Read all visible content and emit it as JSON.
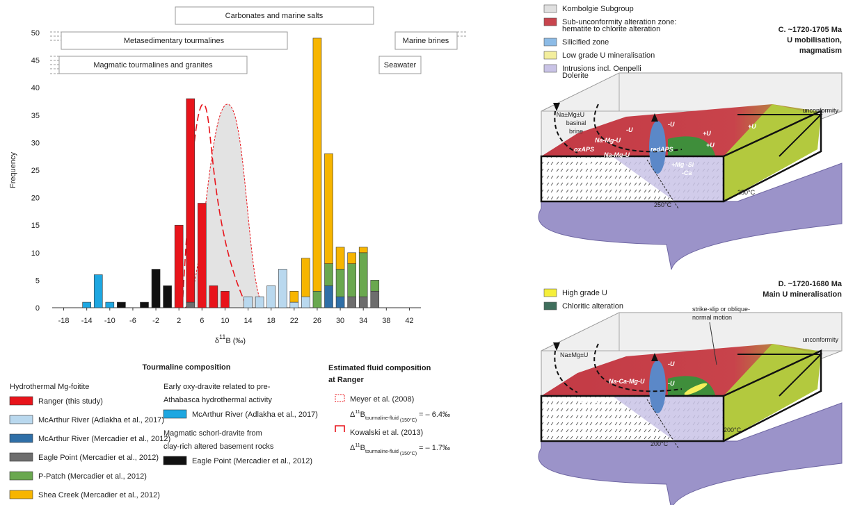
{
  "chart_data": {
    "type": "bar",
    "stacked": true,
    "ranges": [
      "Carbonates and marine salts",
      "Metasedimentary tourmalines",
      "Marine brines",
      "Magmatic tourmalines and granites",
      "Seawater"
    ],
    "y_label": "Frequency",
    "x_label": {
      "symbol": "δ",
      "sup": "11",
      "rest": "B (‰)"
    },
    "x": [
      -14,
      -12,
      -10,
      -8,
      -6,
      -4,
      -2,
      0,
      2,
      4,
      6,
      8,
      10,
      12,
      14,
      16,
      18,
      20,
      22,
      24,
      26,
      28,
      30,
      32,
      34,
      36
    ],
    "series": [
      {
        "name": "Ranger (this study)",
        "color": "#e8141b",
        "values": [
          0,
          0,
          0,
          0,
          0,
          0,
          0,
          0,
          15,
          37,
          19,
          4,
          3,
          0,
          0,
          0,
          0,
          0,
          0,
          0,
          0,
          0,
          0,
          0,
          0,
          0
        ]
      },
      {
        "name": "McArthur River (Adlakha et al., 2017)",
        "color": "#b9d8ee",
        "values": [
          0,
          0,
          0,
          0,
          0,
          0,
          0,
          0,
          0,
          0,
          0,
          0,
          0,
          0,
          2,
          2,
          4,
          7,
          1,
          2,
          0,
          0,
          0,
          0,
          0,
          0
        ]
      },
      {
        "name": "McArthur River (Mercadier et al., 2012)",
        "color": "#2f6fa7",
        "values": [
          0,
          0,
          0,
          0,
          0,
          0,
          0,
          0,
          0,
          0,
          0,
          0,
          0,
          0,
          0,
          0,
          0,
          0,
          0,
          0,
          0,
          4,
          2,
          0,
          0,
          0
        ]
      },
      {
        "name": "Eagle Point (Mercadier et al., 2012)",
        "color": "#6d6d6d",
        "values": [
          0,
          0,
          0,
          0,
          0,
          0,
          0,
          0,
          0,
          1,
          0,
          0,
          0,
          0,
          0,
          0,
          0,
          0,
          0,
          0,
          0,
          0,
          0,
          2,
          2,
          3
        ]
      },
      {
        "name": "P-Patch (Mercadier et al., 2012)",
        "color": "#6aa84f",
        "values": [
          0,
          0,
          0,
          0,
          0,
          0,
          0,
          0,
          0,
          0,
          0,
          0,
          0,
          0,
          0,
          0,
          0,
          0,
          0,
          0,
          3,
          4,
          5,
          6,
          8,
          2
        ]
      },
      {
        "name": "Shea Creek (Mercadier et al., 2012)",
        "color": "#f7b500",
        "values": [
          0,
          0,
          0,
          0,
          0,
          0,
          0,
          0,
          0,
          0,
          0,
          0,
          0,
          0,
          0,
          0,
          0,
          0,
          2,
          7,
          46,
          20,
          4,
          2,
          1,
          0
        ]
      },
      {
        "name": "McArthur River (Adlakha et al., 2017)",
        "color": "#1ea7e1",
        "values": [
          1,
          6,
          1,
          0,
          0,
          0,
          0,
          0,
          0,
          0,
          0,
          0,
          0,
          0,
          0,
          0,
          0,
          0,
          0,
          0,
          0,
          0,
          0,
          0,
          0,
          0
        ]
      },
      {
        "name": "Eagle Point (Mercadier et al., 2012)",
        "color": "#111111",
        "values": [
          0,
          0,
          0,
          1,
          0,
          1,
          7,
          4,
          0,
          0,
          0,
          0,
          0,
          0,
          0,
          0,
          0,
          0,
          0,
          0,
          0,
          0,
          0,
          0,
          0,
          0
        ]
      }
    ],
    "xlim": [
      -20,
      44
    ],
    "xticks": [
      -18,
      -14,
      -10,
      -6,
      -2,
      2,
      6,
      10,
      14,
      18,
      22,
      26,
      30,
      34,
      38,
      42
    ],
    "ylim": [
      0,
      50
    ],
    "yticks": [
      0,
      5,
      10,
      15,
      20,
      25,
      30,
      35,
      40,
      45,
      50
    ],
    "legend": {
      "title": "Tourmaline composition",
      "groups": [
        [
          "Hydrothermal Mg-foitite"
        ],
        [
          "Early oxy-dravite related to pre-",
          "Athabasca hydrothermal activity"
        ],
        [
          "Magmatic schorl-dravite from",
          "clay-rich altered basement rocks"
        ]
      ]
    },
    "fluid_composition": {
      "title": [
        "Estimated fluid composition",
        "at Ranger"
      ],
      "estimates": [
        {
          "name": "Meyer et al. (2008)",
          "symbol": "Δ",
          "sup": "11",
          "base": "B",
          "sub": "tourmaline-fluid",
          "sub2": "(150°C)",
          "value": "= – 6.4‰"
        },
        {
          "name": "Kowalski et al. (2013)",
          "symbol": "Δ",
          "sup": "11",
          "base": "B",
          "sub": "tourmaline-fluid",
          "sub2": "(150°C)",
          "value": "= – 1.7‰"
        }
      ]
    }
  },
  "diagrams": {
    "c": {
      "title": [
        "C. ~1720-1705 Ma",
        "U mobilisation,",
        "magmatism"
      ],
      "legend": [
        [
          "Kombolgie Subgroup"
        ],
        [
          "Sub-unconformity alteration zone:",
          "hematite to chlorite alteration"
        ],
        [
          "Silicified zone"
        ],
        [
          "Low grade U mineralisation"
        ],
        [
          "Intrusions incl. Oenpelli",
          "Dolerite"
        ]
      ],
      "labels": [
        "unconformity",
        "Na±Mg±U",
        "basinal",
        "brine",
        "Na-Mg-U",
        "-U",
        "-U",
        "+U",
        "+U",
        "oxAPS",
        "Na-Mg-U",
        "redAPS",
        "+Mg -Si",
        "-Ca",
        "±U",
        "-U",
        "250°C",
        "250°C",
        "+U"
      ]
    },
    "d": {
      "title": [
        "D. ~1720-1680 Ma",
        "Main U mineralisation"
      ],
      "legend": [
        [
          "High grade U"
        ],
        [
          "Chloritic alteration"
        ]
      ],
      "labels": [
        "strike-slip or oblique-",
        "normal motion",
        "unconformity",
        "Na±Mg±U",
        "-U",
        "Na-Ca-Mg-U",
        "Na-Ca-Mg-U",
        "-U",
        "-U",
        "200°C",
        "200°C"
      ]
    }
  }
}
